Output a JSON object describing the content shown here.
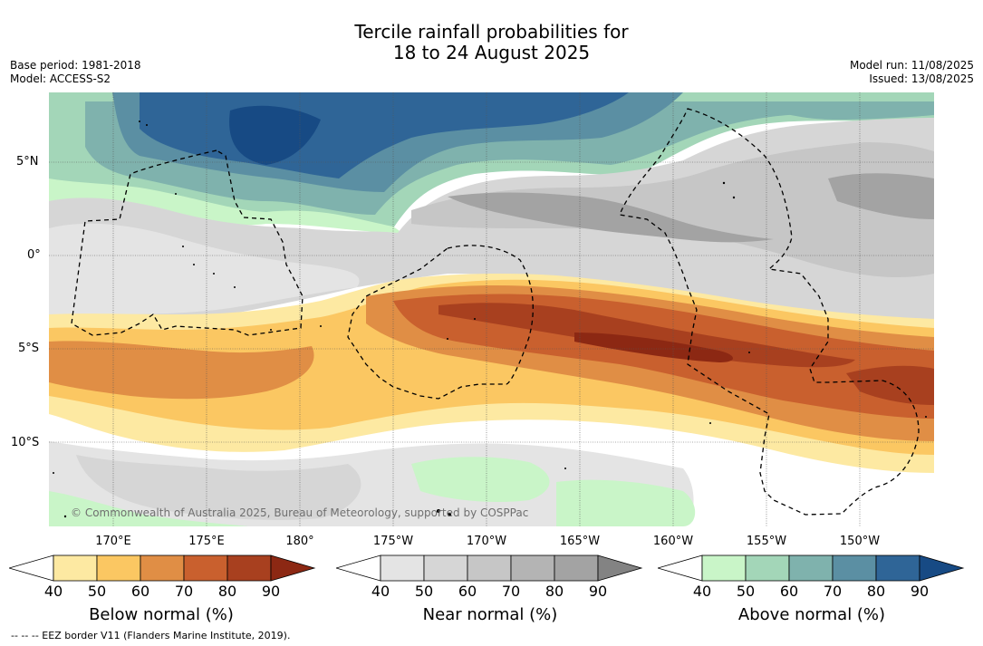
{
  "title": {
    "line1": "Tercile rainfall probabilities for",
    "line2": "18 to 24 August 2025"
  },
  "meta_left": {
    "base_period": "Base period: 1981-2018",
    "model": "Model: ACCESS-S2"
  },
  "meta_right": {
    "model_run": "Model run: 11/08/2025",
    "issued": "Issued: 13/08/2025"
  },
  "map": {
    "lat_labels": [
      "5°N",
      "0°",
      "5°S",
      "10°S"
    ],
    "lon_labels": [
      "170°E",
      "175°E",
      "180°",
      "175°W",
      "170°W",
      "165°W",
      "160°W",
      "155°W",
      "150°W"
    ],
    "credit": "© Commonwealth of Australia 2025, Bureau of Meteorology, supported by COSPPac"
  },
  "colorbars": [
    {
      "title": "Below normal (%)",
      "ticks": [
        "40",
        "50",
        "60",
        "70",
        "80",
        "90"
      ],
      "colors": [
        "#fde9a2",
        "#fbc762",
        "#e08e45",
        "#c9602e",
        "#a8401f",
        "#8c2813"
      ]
    },
    {
      "title": "Near normal (%)",
      "ticks": [
        "40",
        "50",
        "60",
        "70",
        "80",
        "90"
      ],
      "colors": [
        "#e4e4e4",
        "#d6d6d6",
        "#c6c6c6",
        "#b4b4b4",
        "#a3a3a3",
        "#838383"
      ]
    },
    {
      "title": "Above normal (%)",
      "ticks": [
        "40",
        "50",
        "60",
        "70",
        "80",
        "90"
      ],
      "colors": [
        "#c9f5c8",
        "#a3d6b8",
        "#7fb2ad",
        "#5b8fa3",
        "#2f6597",
        "#174a84"
      ]
    }
  ],
  "footnote": "--  --  -- EEZ border V11 (Flanders Marine Institute, 2019)."
}
